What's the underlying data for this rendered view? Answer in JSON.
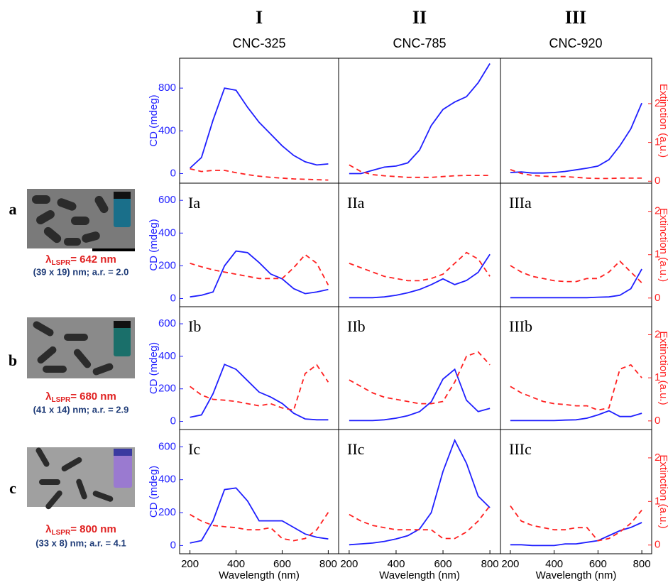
{
  "columns": [
    {
      "numeral": "I",
      "name": "CNC-325"
    },
    {
      "numeral": "II",
      "name": "CNC-785"
    },
    {
      "numeral": "III",
      "name": "CNC-920"
    }
  ],
  "samples": [
    {
      "letter": "a",
      "lambda": "λ",
      "subscript": "LSPR",
      "value": "= 642 nm",
      "dims": "(39 x 19) nm; a.r. = 2.0"
    },
    {
      "letter": "b",
      "lambda": "λ",
      "subscript": "LSPR",
      "value": "= 680 nm",
      "dims": "(41 x 14) nm; a.r. = 2.9"
    },
    {
      "letter": "c",
      "lambda": "λ",
      "subscript": "LSPR",
      "value": "= 800 nm",
      "dims": "(33 x 8) nm; a.r. = 4.1"
    }
  ],
  "chart_data": [
    {
      "type": "line",
      "ylabel": "CD (mdeg)",
      "x": [
        200,
        250,
        300,
        350,
        400,
        450,
        500,
        550,
        600,
        650,
        700,
        750,
        800
      ],
      "xlim": [
        155,
        845
      ],
      "ylim": [
        -90,
        1080
      ],
      "yticks": [
        0,
        400,
        800
      ],
      "y2lim": [
        -0.05,
        3.17
      ],
      "series": [
        {
          "color": "#1f1fff",
          "values": [
            50,
            150,
            500,
            800,
            780,
            620,
            480,
            370,
            260,
            170,
            110,
            80,
            90
          ]
        },
        {
          "color": "#ff2020",
          "axis": "y2",
          "line_style": "dashed",
          "values": [
            0.32,
            0.25,
            0.28,
            0.28,
            0.22,
            0.17,
            0.13,
            0.1,
            0.08,
            0.06,
            0.05,
            0.04,
            0.03
          ]
        }
      ]
    },
    {
      "type": "line",
      "x": [
        200,
        250,
        300,
        350,
        400,
        450,
        500,
        550,
        600,
        650,
        700,
        750,
        800
      ],
      "xlim": [
        155,
        845
      ],
      "ylim": [
        -90,
        1080
      ],
      "y2lim": [
        -0.05,
        3.17
      ],
      "series": [
        {
          "color": "#1f1fff",
          "values": [
            0,
            0,
            30,
            60,
            70,
            100,
            220,
            450,
            600,
            670,
            720,
            850,
            1030
          ]
        },
        {
          "color": "#ff2020",
          "axis": "y2",
          "line_style": "dashed",
          "values": [
            0.42,
            0.25,
            0.17,
            0.14,
            0.12,
            0.1,
            0.1,
            0.1,
            0.12,
            0.14,
            0.15,
            0.15,
            0.15
          ]
        }
      ]
    },
    {
      "type": "line",
      "y2label": "Extinction (a.u.)",
      "x": [
        200,
        250,
        300,
        350,
        400,
        450,
        500,
        550,
        600,
        650,
        700,
        750,
        800
      ],
      "xlim": [
        155,
        845
      ],
      "ylim": [
        -90,
        1080
      ],
      "y2lim": [
        -0.05,
        3.17
      ],
      "y2ticks": [
        0,
        1,
        2
      ],
      "series": [
        {
          "color": "#1f1fff",
          "values": [
            10,
            15,
            5,
            5,
            10,
            20,
            35,
            50,
            70,
            130,
            260,
            420,
            660
          ]
        },
        {
          "color": "#ff2020",
          "axis": "y2",
          "line_style": "dashed",
          "values": [
            0.3,
            0.2,
            0.15,
            0.13,
            0.12,
            0.12,
            0.1,
            0.08,
            0.07,
            0.07,
            0.08,
            0.08,
            0.08
          ]
        }
      ]
    },
    {
      "type": "line",
      "label": "Ia",
      "ylabel": "CD (mdeg)",
      "x": [
        200,
        250,
        300,
        350,
        400,
        450,
        500,
        550,
        600,
        650,
        700,
        750,
        800
      ],
      "xlim": [
        155,
        845
      ],
      "ylim": [
        -50,
        705
      ],
      "yticks": [
        0,
        200,
        400,
        600
      ],
      "y2lim": [
        -0.2,
        2.65
      ],
      "series": [
        {
          "color": "#1f1fff",
          "values": [
            10,
            20,
            40,
            200,
            290,
            280,
            220,
            150,
            120,
            60,
            30,
            40,
            55
          ]
        },
        {
          "color": "#ff2020",
          "axis": "y2",
          "line_style": "dashed",
          "values": [
            0.8,
            0.72,
            0.65,
            0.6,
            0.55,
            0.5,
            0.45,
            0.45,
            0.45,
            0.7,
            1.0,
            0.8,
            0.3
          ]
        }
      ]
    },
    {
      "type": "line",
      "label": "IIa",
      "x": [
        200,
        250,
        300,
        350,
        400,
        450,
        500,
        550,
        600,
        650,
        700,
        750,
        800
      ],
      "xlim": [
        155,
        845
      ],
      "ylim": [
        -50,
        705
      ],
      "y2lim": [
        -0.2,
        2.65
      ],
      "series": [
        {
          "color": "#1f1fff",
          "values": [
            5,
            5,
            5,
            10,
            20,
            35,
            55,
            85,
            120,
            85,
            110,
            160,
            270
          ]
        },
        {
          "color": "#ff2020",
          "axis": "y2",
          "line_style": "dashed",
          "values": [
            0.8,
            0.7,
            0.6,
            0.5,
            0.45,
            0.4,
            0.4,
            0.45,
            0.55,
            0.8,
            1.05,
            0.9,
            0.5
          ]
        }
      ]
    },
    {
      "type": "line",
      "label": "IIIa",
      "y2label": "Extinction (a.u.)",
      "x": [
        200,
        250,
        300,
        350,
        400,
        450,
        500,
        550,
        600,
        650,
        700,
        750,
        800
      ],
      "xlim": [
        155,
        845
      ],
      "ylim": [
        -50,
        705
      ],
      "y2lim": [
        -0.2,
        2.65
      ],
      "y2ticks": [
        0,
        1,
        2
      ],
      "series": [
        {
          "color": "#1f1fff",
          "values": [
            5,
            5,
            5,
            5,
            5,
            5,
            5,
            5,
            8,
            10,
            20,
            60,
            180
          ]
        },
        {
          "color": "#ff2020",
          "axis": "y2",
          "line_style": "dashed",
          "values": [
            0.75,
            0.6,
            0.5,
            0.45,
            0.4,
            0.38,
            0.38,
            0.45,
            0.45,
            0.6,
            0.85,
            0.6,
            0.35
          ]
        }
      ]
    },
    {
      "type": "line",
      "label": "Ib",
      "ylabel": "CD (mdeg)",
      "x": [
        200,
        250,
        300,
        350,
        400,
        450,
        500,
        550,
        600,
        650,
        700,
        750,
        800
      ],
      "xlim": [
        155,
        845
      ],
      "ylim": [
        -50,
        705
      ],
      "yticks": [
        0,
        200,
        400,
        600
      ],
      "y2lim": [
        -0.2,
        2.65
      ],
      "series": [
        {
          "color": "#1f1fff",
          "values": [
            25,
            40,
            170,
            350,
            320,
            250,
            180,
            150,
            110,
            50,
            15,
            10,
            10
          ]
        },
        {
          "color": "#ff2020",
          "axis": "y2",
          "line_style": "dashed",
          "values": [
            0.8,
            0.6,
            0.5,
            0.48,
            0.45,
            0.4,
            0.35,
            0.4,
            0.3,
            0.25,
            1.1,
            1.3,
            0.9
          ]
        }
      ]
    },
    {
      "type": "line",
      "label": "IIb",
      "x": [
        200,
        250,
        300,
        350,
        400,
        450,
        500,
        550,
        600,
        650,
        700,
        750,
        800
      ],
      "xlim": [
        155,
        845
      ],
      "ylim": [
        -50,
        705
      ],
      "y2lim": [
        -0.2,
        2.65
      ],
      "series": [
        {
          "color": "#1f1fff",
          "values": [
            5,
            5,
            5,
            10,
            20,
            35,
            60,
            120,
            260,
            320,
            130,
            60,
            80
          ]
        },
        {
          "color": "#ff2020",
          "axis": "y2",
          "line_style": "dashed",
          "values": [
            0.95,
            0.8,
            0.65,
            0.55,
            0.5,
            0.45,
            0.4,
            0.4,
            0.45,
            0.9,
            1.5,
            1.6,
            1.3
          ]
        }
      ]
    },
    {
      "type": "line",
      "label": "IIIb",
      "y2label": "Extinction (a.u.)",
      "x": [
        200,
        250,
        300,
        350,
        400,
        450,
        500,
        550,
        600,
        650,
        700,
        750,
        800
      ],
      "xlim": [
        155,
        845
      ],
      "ylim": [
        -50,
        705
      ],
      "y2lim": [
        -0.2,
        2.65
      ],
      "y2ticks": [
        0,
        1,
        2
      ],
      "series": [
        {
          "color": "#1f1fff",
          "values": [
            5,
            5,
            5,
            5,
            5,
            8,
            10,
            20,
            40,
            65,
            30,
            30,
            50
          ]
        },
        {
          "color": "#ff2020",
          "axis": "y2",
          "line_style": "dashed",
          "values": [
            0.8,
            0.65,
            0.55,
            0.45,
            0.4,
            0.38,
            0.35,
            0.35,
            0.25,
            0.3,
            1.2,
            1.3,
            1.0
          ]
        }
      ]
    },
    {
      "type": "line",
      "label": "Ic",
      "ylabel": "CD (mdeg)",
      "xlabel": "Wavelength (nm)",
      "x": [
        200,
        250,
        300,
        350,
        400,
        450,
        500,
        550,
        600,
        650,
        700,
        750,
        800
      ],
      "xlim": [
        155,
        845
      ],
      "xticks": [
        200,
        400,
        600,
        800
      ],
      "ylim": [
        -50,
        705
      ],
      "yticks": [
        0,
        200,
        400,
        600
      ],
      "y2lim": [
        -0.2,
        2.65
      ],
      "series": [
        {
          "color": "#1f1fff",
          "values": [
            15,
            30,
            150,
            340,
            350,
            270,
            150,
            150,
            150,
            110,
            70,
            50,
            40
          ]
        },
        {
          "color": "#ff2020",
          "axis": "y2",
          "line_style": "dashed",
          "values": [
            0.7,
            0.55,
            0.45,
            0.42,
            0.4,
            0.35,
            0.35,
            0.4,
            0.15,
            0.1,
            0.15,
            0.35,
            0.75
          ]
        }
      ]
    },
    {
      "type": "line",
      "label": "IIc",
      "xlabel": "Wavelength (nm)",
      "x": [
        200,
        250,
        300,
        350,
        400,
        450,
        500,
        550,
        600,
        650,
        700,
        750,
        800
      ],
      "xlim": [
        155,
        845
      ],
      "xticks": [
        200,
        400,
        600,
        800
      ],
      "ylim": [
        -50,
        705
      ],
      "y2lim": [
        -0.2,
        2.65
      ],
      "series": [
        {
          "color": "#1f1fff",
          "values": [
            5,
            10,
            15,
            25,
            40,
            60,
            100,
            200,
            450,
            640,
            500,
            300,
            230
          ]
        },
        {
          "color": "#ff2020",
          "axis": "y2",
          "line_style": "dashed",
          "values": [
            0.7,
            0.55,
            0.45,
            0.4,
            0.35,
            0.35,
            0.35,
            0.35,
            0.15,
            0.15,
            0.3,
            0.55,
            0.9
          ]
        }
      ]
    },
    {
      "type": "line",
      "label": "IIIc",
      "xlabel": "Wavelength (nm)",
      "y2label": "Extinction (a.u.)",
      "x": [
        200,
        250,
        300,
        350,
        400,
        450,
        500,
        550,
        600,
        650,
        700,
        750,
        800
      ],
      "xlim": [
        155,
        845
      ],
      "xticks": [
        200,
        400,
        600,
        800
      ],
      "ylim": [
        -50,
        705
      ],
      "y2lim": [
        -0.2,
        2.65
      ],
      "y2ticks": [
        0,
        1,
        2
      ],
      "series": [
        {
          "color": "#1f1fff",
          "values": [
            5,
            5,
            0,
            0,
            0,
            10,
            10,
            20,
            30,
            60,
            90,
            110,
            140
          ]
        },
        {
          "color": "#ff2020",
          "axis": "y2",
          "line_style": "dashed",
          "values": [
            0.9,
            0.55,
            0.45,
            0.4,
            0.35,
            0.35,
            0.4,
            0.4,
            0.1,
            0.15,
            0.3,
            0.5,
            0.8
          ]
        }
      ]
    }
  ]
}
